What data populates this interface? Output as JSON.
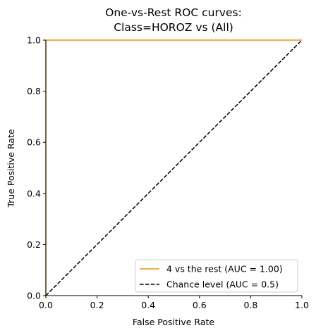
{
  "chart_data": {
    "type": "line",
    "title_lines": [
      "One-vs-Rest ROC curves:",
      "Class=HOROZ vs (All)"
    ],
    "xlabel": "False Positive Rate",
    "ylabel": "True Positive Rate",
    "xlim": [
      0,
      1
    ],
    "ylim": [
      0,
      1
    ],
    "x_ticks": [
      "0.0",
      "0.2",
      "0.4",
      "0.6",
      "0.8",
      "1.0"
    ],
    "y_ticks": [
      "0.0",
      "0.2",
      "0.4",
      "0.6",
      "0.8",
      "1.0"
    ],
    "grid": false,
    "legend_position": "lower-right",
    "series": [
      {
        "name": "4 vs the rest (AUC = 1.00)",
        "color": "#ff8c00",
        "style": "solid",
        "x": [
          0,
          0,
          0,
          1
        ],
        "y": [
          0,
          0.0,
          1.0,
          1.0
        ]
      },
      {
        "name": "Chance level (AUC = 0.5)",
        "color": "#000000",
        "style": "dashed",
        "x": [
          0,
          1
        ],
        "y": [
          0,
          1
        ]
      }
    ]
  }
}
